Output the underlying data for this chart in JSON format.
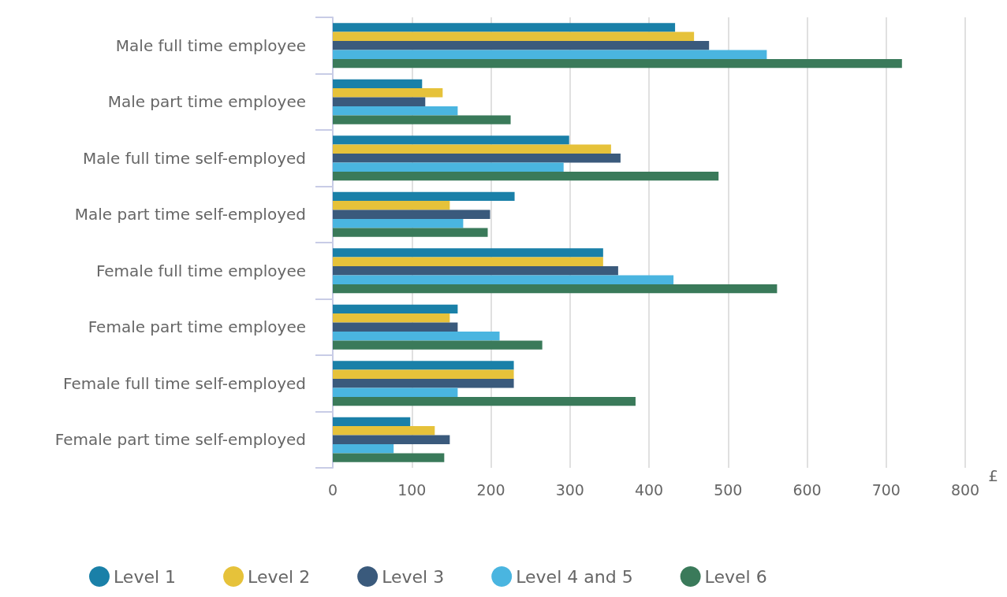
{
  "chart_data": {
    "type": "bar",
    "orientation": "horizontal",
    "xlabel": "£",
    "categories": [
      "Male full time employee",
      "Male part time employee",
      "Male full time self-employed",
      "Male part time self-employed",
      "Female full time employee",
      "Female part time employee",
      "Female full time self-employed",
      "Female part time self-employed"
    ],
    "series": [
      {
        "name": "Level 1",
        "color": "#1a80a8",
        "values": [
          433,
          113,
          299,
          230,
          342,
          158,
          229,
          98
        ]
      },
      {
        "name": "Level 2",
        "color": "#e6c23a",
        "values": [
          457,
          139,
          352,
          148,
          342,
          148,
          229,
          129
        ]
      },
      {
        "name": "Level 3",
        "color": "#3a5a7c",
        "values": [
          476,
          117,
          364,
          199,
          361,
          158,
          229,
          148
        ]
      },
      {
        "name": "Level 4 and 5",
        "color": "#4ab5e0",
        "values": [
          549,
          158,
          292,
          165,
          431,
          211,
          158,
          77
        ]
      },
      {
        "name": "Level 6",
        "color": "#3a7a5a",
        "values": [
          720,
          225,
          488,
          196,
          562,
          265,
          383,
          141
        ]
      }
    ],
    "xlim": [
      0,
      800
    ],
    "xticks": [
      0,
      100,
      200,
      300,
      400,
      500,
      600,
      700,
      800
    ],
    "grid": "x",
    "legend": "bottom"
  }
}
